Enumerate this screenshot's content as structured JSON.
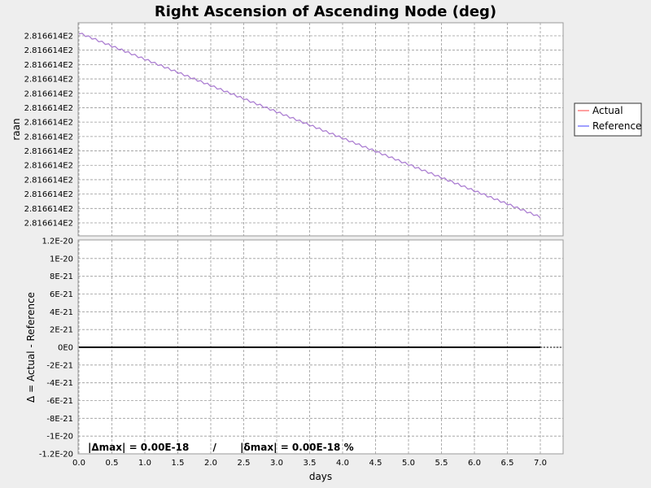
{
  "chart_data": {
    "title": "Right Ascension of Ascending Node (deg)",
    "xlabel": "days",
    "x_ticks": [
      "0.0",
      "0.5",
      "1.0",
      "1.5",
      "2.0",
      "2.5",
      "3.0",
      "3.5",
      "4.0",
      "4.5",
      "5.0",
      "5.5",
      "6.0",
      "6.5",
      "7.0"
    ],
    "xlim": [
      0,
      7.35
    ],
    "grid": true,
    "legend_position": "right",
    "legend": [
      {
        "name": "Actual",
        "color": "#ff8080"
      },
      {
        "name": "Reference",
        "color": "#8080ff"
      }
    ],
    "top": {
      "type": "line",
      "ylabel": "raan",
      "y_ticks": [
        "2.816614E2",
        "2.816614E2",
        "2.816614E2",
        "2.816614E2",
        "2.816614E2",
        "2.816614E2",
        "2.816614E2",
        "2.816614E2",
        "2.816614E2",
        "2.816614E2",
        "2.816614E2",
        "2.816614E2",
        "2.816614E2",
        "2.816614E2"
      ],
      "ylim": [
        0,
        15
      ],
      "series": [
        {
          "name": "Actual",
          "x": [
            0.0,
            7.0
          ],
          "y": [
            14.2,
            1.4
          ],
          "color": "#ff8080"
        },
        {
          "name": "Reference",
          "x": [
            0.0,
            7.0
          ],
          "y": [
            14.2,
            1.4
          ],
          "color": "#8080ff"
        }
      ]
    },
    "bottom": {
      "type": "line",
      "ylabel": "Δ = Actual - Reference",
      "y_ticks": [
        "1.2E-20",
        "1E-20",
        "8E-21",
        "6E-21",
        "4E-21",
        "2E-21",
        "0E0",
        "-2E-21",
        "-4E-21",
        "-6E-21",
        "-8E-21",
        "-1E-20",
        "-1.2E-20"
      ],
      "ylim": [
        -1.2e-20,
        1.2e-20
      ],
      "series": [
        {
          "x": [
            0.0,
            7.0
          ],
          "y": [
            0,
            0
          ],
          "color": "#000000"
        }
      ],
      "annotation": "|Δmax| = 0.00E-18       /       |δmax| = 0.00E-18 %"
    }
  }
}
